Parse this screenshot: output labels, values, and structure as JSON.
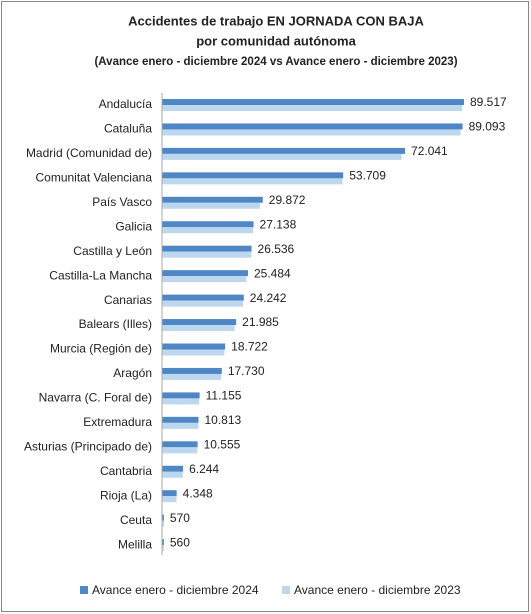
{
  "chart_data": {
    "type": "bar",
    "orientation": "horizontal",
    "title": "Accidentes de trabajo EN JORNADA CON BAJA",
    "subtitle": "por comunidad autónoma",
    "note": "(Avance enero - diciembre 2024 vs Avance enero - diciembre 2023)",
    "categories": [
      "Andalucía",
      "Cataluña",
      "Madrid (Comunidad de)",
      "Comunitat Valenciana",
      "País Vasco",
      "Galicia",
      "Castilla y León",
      "Castilla-La Mancha",
      "Canarias",
      "Balears (Illes)",
      "Murcia (Región de)",
      "Aragón",
      "Navarra (C. Foral de)",
      "Extremadura",
      "Asturias (Principado de)",
      "Cantabria",
      "Rioja (La)",
      "Ceuta",
      "Melilla"
    ],
    "series": [
      {
        "name": "Avance enero - diciembre 2024",
        "color": "#4f86c6",
        "values": [
          89517,
          89093,
          72041,
          53709,
          29872,
          27138,
          26536,
          25484,
          24242,
          21985,
          18722,
          17730,
          11155,
          10813,
          10555,
          6244,
          4348,
          570,
          560
        ],
        "value_labels": [
          "89.517",
          "89.093",
          "72.041",
          "53.709",
          "29.872",
          "27.138",
          "26.536",
          "25.484",
          "24.242",
          "21.985",
          "18.722",
          "17.730",
          "11.155",
          "10.813",
          "10.555",
          "6.244",
          "4.348",
          "570",
          "560"
        ]
      },
      {
        "name": "Avance enero - diciembre 2023",
        "color": "#bdd7ee",
        "values": [
          89000,
          88500,
          71000,
          53500,
          29000,
          27000,
          26500,
          25000,
          24000,
          21500,
          18500,
          17500,
          11000,
          10800,
          10500,
          6200,
          4300,
          600,
          550
        ]
      }
    ],
    "legend": "bottom"
  }
}
